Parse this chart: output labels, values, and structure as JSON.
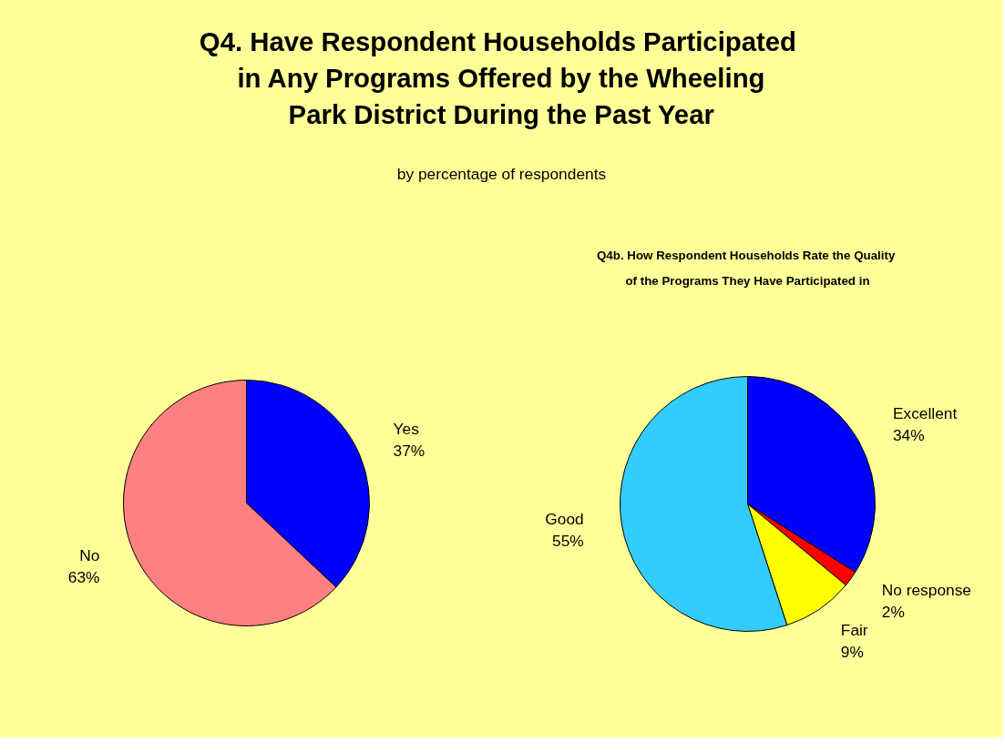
{
  "chart_data": [
    {
      "type": "pie",
      "title": "Q4.  Have Respondent Households Participated\nin Any Programs Offered by the Wheeling\nPark District During the Past Year",
      "subtitle": "by percentage of respondents",
      "categories": [
        "Yes",
        "No"
      ],
      "values": [
        37,
        63
      ],
      "value_labels": [
        "37%",
        "63%"
      ],
      "colors": [
        "#0000ff",
        "#ff8080"
      ]
    },
    {
      "type": "pie",
      "title": "Q4b.  How Respondent Households Rate the Quality\nof the Programs They Have Participated in",
      "categories": [
        "Excellent",
        "No response",
        "Fair",
        "Good"
      ],
      "values": [
        34,
        2,
        9,
        55
      ],
      "value_labels": [
        "34%",
        "2%",
        "9%",
        "55%"
      ],
      "colors": [
        "#0000ff",
        "#ff0000",
        "#ffff00",
        "#33ccff"
      ]
    }
  ]
}
